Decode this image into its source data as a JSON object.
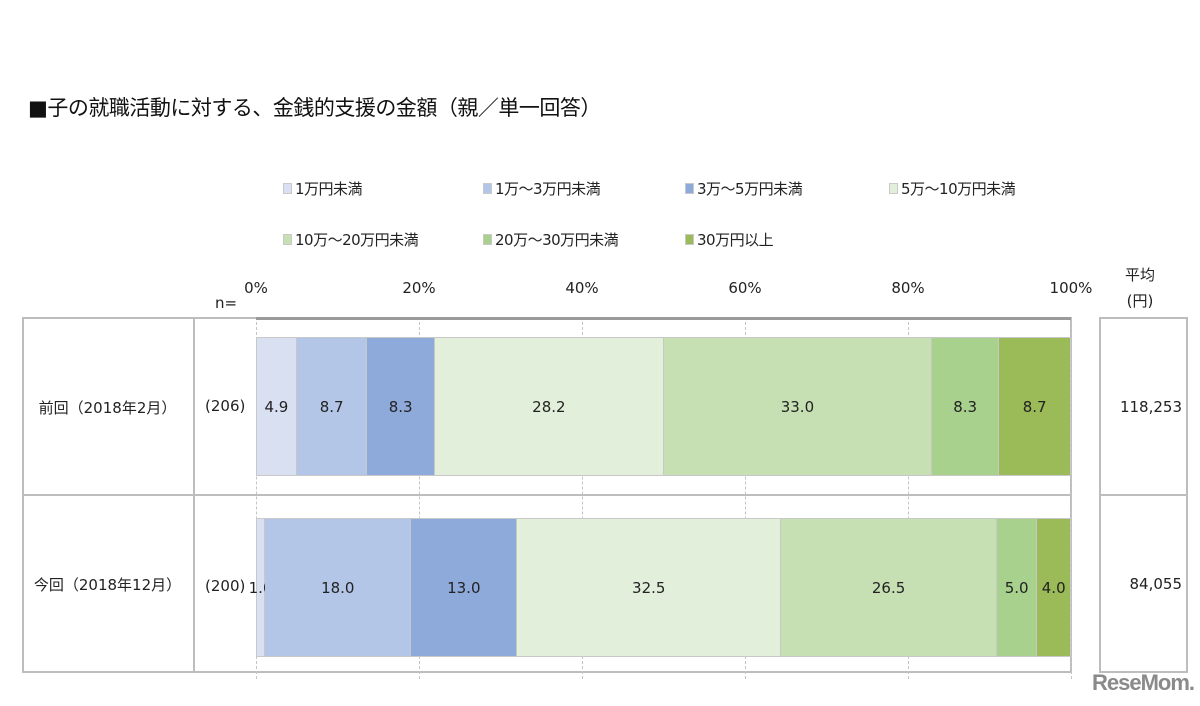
{
  "title": "■子の就職活動に対する、金銭的支援の金額（親／単一回答）",
  "legend": [
    {
      "label": "1万円未満",
      "color": "#d9e0f2"
    },
    {
      "label": "1万～3万円未満",
      "color": "#b3c6e7"
    },
    {
      "label": "3万～5万円未満",
      "color": "#8eaadb"
    },
    {
      "label": "5万～10万円未満",
      "color": "#e2efda"
    },
    {
      "label": "10万～20万円未満",
      "color": "#c6e0b4"
    },
    {
      "label": "20万～30万円未満",
      "color": "#a9d18e"
    },
    {
      "label": "30万円以上",
      "color": "#9bbb59"
    }
  ],
  "axis": {
    "ticks": [
      "0%",
      "20%",
      "40%",
      "60%",
      "80%",
      "100%"
    ],
    "n_label": "n=",
    "avg_header_line1": "平均",
    "avg_header_line2": "(円)"
  },
  "rows": [
    {
      "label": "前回（2018年2月）",
      "n": "(206)",
      "values": [
        "4.9",
        "8.7",
        "8.3",
        "28.2",
        "33.0",
        "8.3",
        "8.7"
      ],
      "average": "118,253"
    },
    {
      "label": "今回（2018年12月）",
      "n": "(200)",
      "values": [
        "1.0",
        "18.0",
        "13.0",
        "32.5",
        "26.5",
        "5.0",
        "4.0"
      ],
      "average": "84,055"
    }
  ],
  "watermark": "ReseMom.",
  "chart_data": {
    "type": "bar",
    "orientation": "horizontal",
    "stacked": true,
    "percent_stacked": true,
    "title": "子の就職活動に対する、金銭的支援の金額（親／単一回答）",
    "categories": [
      "前回（2018年2月）",
      "今回（2018年12月）"
    ],
    "sample_sizes": [
      206,
      200
    ],
    "series": [
      {
        "name": "1万円未満",
        "values": [
          4.9,
          1.0
        ],
        "color": "#d9e0f2"
      },
      {
        "name": "1万～3万円未満",
        "values": [
          8.7,
          18.0
        ],
        "color": "#b3c6e7"
      },
      {
        "name": "3万～5万円未満",
        "values": [
          8.3,
          13.0
        ],
        "color": "#8eaadb"
      },
      {
        "name": "5万～10万円未満",
        "values": [
          28.2,
          32.5
        ],
        "color": "#e2efda"
      },
      {
        "name": "10万～20万円未満",
        "values": [
          33.0,
          26.5
        ],
        "color": "#c6e0b4"
      },
      {
        "name": "20万～30万円未満",
        "values": [
          8.3,
          5.0
        ],
        "color": "#a9d18e"
      },
      {
        "name": "30万円以上",
        "values": [
          8.7,
          4.0
        ],
        "color": "#9bbb59"
      }
    ],
    "averages_yen": [
      118253,
      84055
    ],
    "xlabel": "",
    "ylabel": "",
    "xlim": [
      0,
      100
    ],
    "x_ticks": [
      "0%",
      "20%",
      "40%",
      "60%",
      "80%",
      "100%"
    ],
    "grid": true,
    "legend_position": "top"
  }
}
